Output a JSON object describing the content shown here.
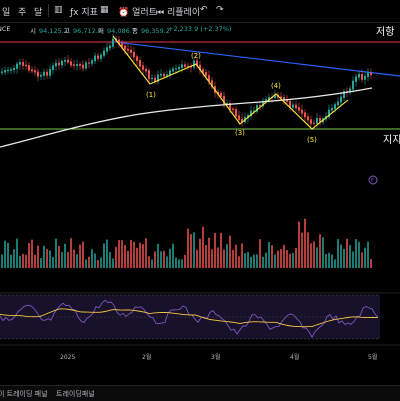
{
  "toolbar": {
    "timeframe_left": "일",
    "timeframe_right": "주",
    "day": "달",
    "indicators": "지표",
    "alerts": "얼러트",
    "replay": "리플레이"
  },
  "ohlc": {
    "symbol": "NCE",
    "o_label": "시",
    "o_val": "94,125.2",
    "h_label": "고",
    "h_val": "96,712.0",
    "l_label": "저",
    "l_val": "94,086.7",
    "c_label": "종",
    "c_val": "96,359.2",
    "change": "+2,233.9 (+2.37%)"
  },
  "annotations": {
    "resistance": "저항",
    "support": "지지",
    "wave_1": "(1)",
    "wave_2": "(2)",
    "wave_3": "(3)",
    "wave_4": "(4)",
    "wave_5": "(5)",
    "badge": "F"
  },
  "x_axis": {
    "labels": [
      "2025",
      "2월",
      "3월",
      "4월",
      "5월"
    ]
  },
  "bottom_tabs": {
    "tab1": "이 트레이딩 패널",
    "tab2": "트레이딩패널"
  },
  "colors": {
    "up": "#26a69a",
    "down": "#ef5350",
    "resistance_line": "#f23645",
    "support_line": "#7ec850",
    "trend_line": "#2962ff",
    "wave_line": "#ffeb3b",
    "ma_line": "#e8e8e8",
    "rsi_line": "#7e57c2",
    "rsi_ma": "#f5c542",
    "rsi_band": "#2a1f4a"
  }
}
